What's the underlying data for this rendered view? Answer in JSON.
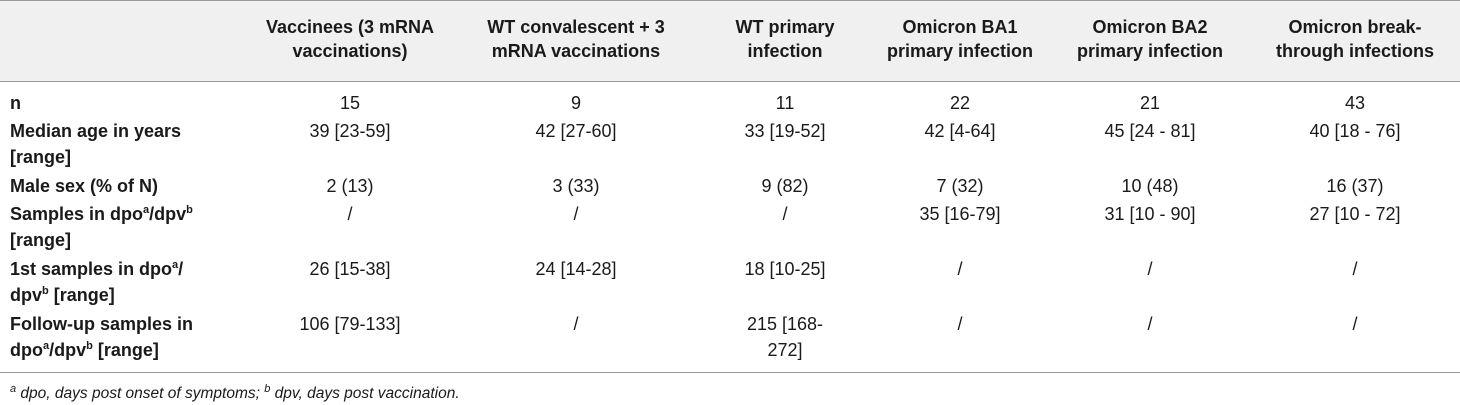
{
  "columns": [
    "Vaccinees (3 mRNA vaccinations)",
    "WT convalescent + 3 mRNA vaccinations",
    "WT primary infection",
    "Omicron BA1 primary infection",
    "Omicron BA2 primary infection",
    "Omicron break-through infections"
  ],
  "column_lines": [
    [
      "Vaccinees (3 mRNA",
      "vaccinations)"
    ],
    [
      "WT convalescent + 3",
      "mRNA vaccinations"
    ],
    [
      "WT primary",
      "infection"
    ],
    [
      "Omicron BA1",
      "primary infection"
    ],
    [
      "Omicron BA2",
      "primary infection"
    ],
    [
      "Omicron break-",
      "through infections"
    ]
  ],
  "rows": [
    {
      "label_lines": [
        "n"
      ],
      "cells": [
        [
          "15"
        ],
        [
          "9"
        ],
        [
          "11"
        ],
        [
          "22"
        ],
        [
          "21"
        ],
        [
          "43"
        ]
      ]
    },
    {
      "label_lines": [
        "Median age in years",
        "[range]"
      ],
      "cells": [
        [
          "39 [23-59]"
        ],
        [
          "42 [27-60]"
        ],
        [
          "33 [19-52]"
        ],
        [
          "42 [4-64]"
        ],
        [
          "45 [24 - 81]"
        ],
        [
          "40 [18 - 76]"
        ]
      ]
    },
    {
      "label_lines": [
        "Male sex (% of N)"
      ],
      "cells": [
        [
          "2 (13)"
        ],
        [
          "3 (33)"
        ],
        [
          "9 (82)"
        ],
        [
          "7 (32)"
        ],
        [
          "10 (48)"
        ],
        [
          "16 (37)"
        ]
      ]
    },
    {
      "label_lines": [
        "Samples in dpo",
        "a",
        "/dpv",
        "b",
        "[range]"
      ],
      "cells": [
        [
          "/"
        ],
        [
          "/"
        ],
        [
          "/"
        ],
        [
          "35 [16-79]"
        ],
        [
          "31 [10 - 90]"
        ],
        [
          "27 [10 - 72]"
        ]
      ]
    },
    {
      "label_lines": [
        "1st samples in dpo",
        "a",
        "/",
        "dpv",
        "b",
        " [range]"
      ],
      "cells": [
        [
          "26 [15-38]"
        ],
        [
          "24 [14-28]"
        ],
        [
          "18 [10-25]"
        ],
        [
          "/"
        ],
        [
          "/"
        ],
        [
          "/"
        ]
      ]
    },
    {
      "label_lines": [
        "Follow-up samples in",
        "dpo",
        "a",
        "/dpv",
        "b",
        " [range]"
      ],
      "cells": [
        [
          "106 [79-133]"
        ],
        [
          "/"
        ],
        [
          "215 [168-",
          "272]"
        ],
        [
          "/"
        ],
        [
          "/"
        ],
        [
          "/"
        ]
      ]
    }
  ],
  "footnote": {
    "sup_a": "a",
    "text_a": " dpo, days post onset of symptoms; ",
    "sup_b": "b",
    "text_b": " dpv, days post vaccination."
  }
}
